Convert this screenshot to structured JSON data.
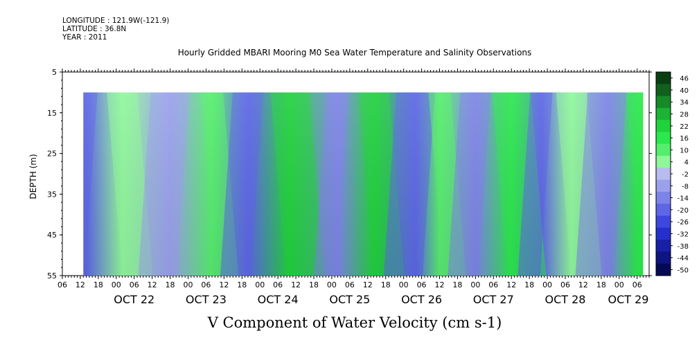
{
  "header": {
    "longitude": "LONGITUDE : 121.9W(-121.9)",
    "latitude": "LATITUDE : 36.8N",
    "year": "YEAR : 2011"
  },
  "chart_data": {
    "type": "heatmap",
    "title": "Hourly Gridded MBARI Mooring M0 Sea Water Temperature and Salinity Observations",
    "subtitle": "V Component of Water Velocity (cm s-1)",
    "ylabel": "DEPTH (m)",
    "xlabel": "",
    "y_axis": {
      "ticks": [
        5,
        15,
        25,
        35,
        45,
        55
      ],
      "range": [
        5,
        55
      ],
      "inverted": true
    },
    "x_axis": {
      "hour_ticks": [
        "06",
        "12",
        "18",
        "00",
        "06",
        "12",
        "18",
        "00",
        "06",
        "12",
        "18",
        "00",
        "06",
        "12",
        "18",
        "00",
        "06",
        "12",
        "18",
        "00",
        "06",
        "12",
        "18",
        "00",
        "06",
        "12",
        "18",
        "00",
        "06",
        "12",
        "18",
        "00",
        "06"
      ],
      "day_labels": [
        "OCT 22",
        "OCT 23",
        "OCT 24",
        "OCT 25",
        "OCT 26",
        "OCT 27",
        "OCT 28",
        "OCT 29"
      ],
      "start": "2011-10-21 06:00",
      "end": "2011-10-29 10:00"
    },
    "data_extent": {
      "time_start": "2011-10-21 13:00",
      "time_end": "2011-10-29 08:00",
      "depth_min": 10,
      "depth_max": 55
    },
    "colorbar": {
      "labels": [
        "46",
        "40",
        "34",
        "28",
        "22",
        "16",
        "10",
        "4",
        "-2",
        "-8",
        "-14",
        "-20",
        "-26",
        "-32",
        "-38",
        "-44",
        "-50"
      ],
      "colors": [
        "#0b3d12",
        "#11601d",
        "#168a28",
        "#1db334",
        "#20d23c",
        "#2be84c",
        "#55ee6c",
        "#8ff79a",
        "#b8bcee",
        "#9aa0ec",
        "#7d84e8",
        "#5d66e6",
        "#3d47e0",
        "#2530cc",
        "#1820a8",
        "#0e1480",
        "#060a55"
      ]
    },
    "field": {
      "description": "V velocity by time (hours) and depth; positive northward (green), negative southward (blue)",
      "features_hours": [
        {
          "t": 8,
          "v": -18
        },
        {
          "t": 20,
          "v": 4
        },
        {
          "t": 36,
          "v": -10
        },
        {
          "t": 50,
          "v": 12
        },
        {
          "t": 62,
          "v": -20
        },
        {
          "t": 76,
          "v": 22
        },
        {
          "t": 92,
          "v": -15
        },
        {
          "t": 104,
          "v": 24
        },
        {
          "t": 118,
          "v": -22
        },
        {
          "t": 126,
          "v": 10
        },
        {
          "t": 138,
          "v": -12
        },
        {
          "t": 150,
          "v": 16
        },
        {
          "t": 160,
          "v": -18
        },
        {
          "t": 170,
          "v": 6
        },
        {
          "t": 182,
          "v": -14
        },
        {
          "t": 192,
          "v": 18
        }
      ]
    }
  }
}
